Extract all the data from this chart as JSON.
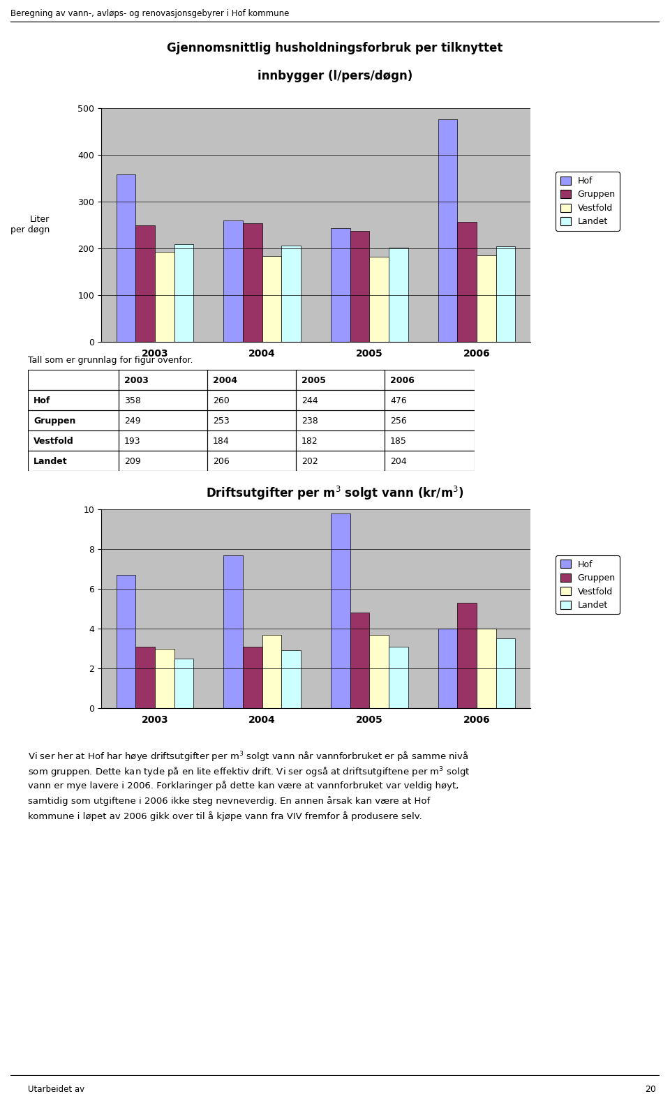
{
  "page_title": "Beregning av vann-, avløps- og renovasjonsgebyrer i Hof kommune",
  "chart1_title_line1": "Gjennomsnittlig husholdningsforbruk per tilknyttet",
  "chart1_title_line2": "innbygger (l/pers/døgn)",
  "chart1_ylabel": "Liter\nper døgn",
  "chart1_ylim": [
    0,
    500
  ],
  "chart1_yticks": [
    0,
    100,
    200,
    300,
    400,
    500
  ],
  "chart1_data": {
    "Hof": [
      358,
      260,
      244,
      476
    ],
    "Gruppen": [
      249,
      253,
      238,
      256
    ],
    "Vestfold": [
      193,
      184,
      182,
      185
    ],
    "Landet": [
      209,
      206,
      202,
      204
    ]
  },
  "chart2_title": "Driftsutgifter per m$^3$ solgt vann (kr/m$^3$)",
  "chart2_ylim": [
    0,
    10
  ],
  "chart2_yticks": [
    0,
    2,
    4,
    6,
    8,
    10
  ],
  "chart2_data": {
    "Hof": [
      6.7,
      7.7,
      9.8,
      4.0
    ],
    "Gruppen": [
      3.1,
      3.1,
      4.8,
      5.3
    ],
    "Vestfold": [
      3.0,
      3.7,
      3.7,
      4.0
    ],
    "Landet": [
      2.5,
      2.9,
      3.1,
      3.5
    ]
  },
  "years": [
    "2003",
    "2004",
    "2005",
    "2006"
  ],
  "colors": {
    "Hof": "#9999FF",
    "Gruppen": "#993366",
    "Vestfold": "#FFFFCC",
    "Landet": "#CCFFFF"
  },
  "legend_order": [
    "Hof",
    "Gruppen",
    "Vestfold",
    "Landet"
  ],
  "table_caption": "Tall som er grunnlag for figur ovenfor.",
  "table_rows": [
    [
      "Hof",
      "358",
      "260",
      "244",
      "476"
    ],
    [
      "Gruppen",
      "249",
      "253",
      "238",
      "256"
    ],
    [
      "Vestfold",
      "193",
      "184",
      "182",
      "185"
    ],
    [
      "Landet",
      "209",
      "206",
      "202",
      "204"
    ]
  ],
  "body_text_lines": [
    "Vi ser her at Hof har høye driftsutgifter per m$^3$ solgt vann når vannforbruket er på samme nivå",
    "som gruppen. Dette kan tyde på en lite effektiv drift. Vi ser også at driftsutgiftene per m$^3$ solgt",
    "vann er mye lavere i 2006. Forklaringer på dette kan være at vannforbruket var veldig høyt,",
    "samtidig som utgiftene i 2006 ikke steg nevneverdig. En annen årsak kan være at Hof",
    "kommune i løpet av 2006 gikk over til å kjøpe vann fra VIV fremfor å produsere selv."
  ],
  "footer_text": "Utarbeidet av",
  "page_number": "20",
  "chart_bg": "#C0C0C0",
  "bar_edge_color": "#000000",
  "bar_width": 0.18,
  "fig_width": 9.6,
  "fig_height": 15.91
}
